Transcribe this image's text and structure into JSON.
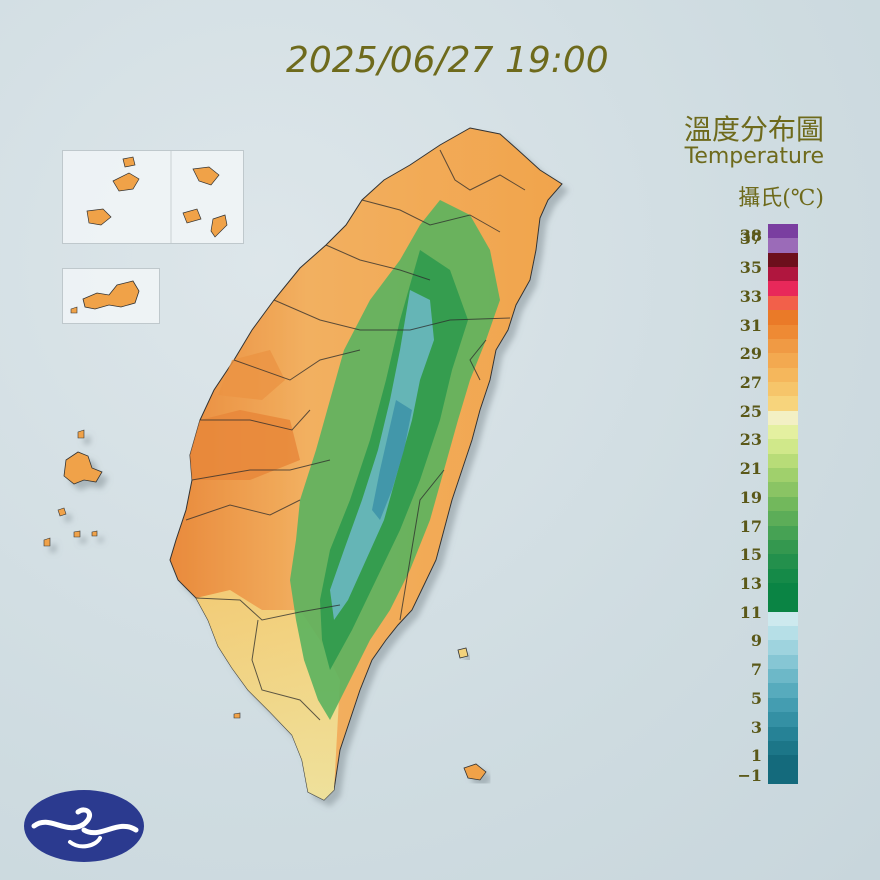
{
  "timestamp": "2025/06/27 19:00",
  "legend": {
    "title_zh": "溫度分布圖",
    "title_en": "Temperature",
    "unit": "攝氏(℃)",
    "ticks": [
      "38",
      "37",
      "35",
      "33",
      "31",
      "29",
      "27",
      "25",
      "23",
      "21",
      "19",
      "17",
      "15",
      "13",
      "11",
      "9",
      "7",
      "5",
      "3",
      "1",
      "−1"
    ],
    "segments": [
      {
        "from": 37,
        "to": 38,
        "color": "#7a3ea0"
      },
      {
        "from": 36,
        "to": 37,
        "color": "#9b6bb8"
      },
      {
        "from": 35,
        "to": 36,
        "color": "#6d0f1c"
      },
      {
        "from": 34,
        "to": 35,
        "color": "#b0163e"
      },
      {
        "from": 33,
        "to": 34,
        "color": "#e8285a"
      },
      {
        "from": 32,
        "to": 33,
        "color": "#f2604a"
      },
      {
        "from": 31,
        "to": 32,
        "color": "#ea7a28"
      },
      {
        "from": 30,
        "to": 31,
        "color": "#ee8a34"
      },
      {
        "from": 29,
        "to": 30,
        "color": "#f09a44"
      },
      {
        "from": 28,
        "to": 29,
        "color": "#f3a950"
      },
      {
        "from": 27,
        "to": 28,
        "color": "#f5b75c"
      },
      {
        "from": 26,
        "to": 27,
        "color": "#f6c56a"
      },
      {
        "from": 25,
        "to": 26,
        "color": "#f7d47c"
      },
      {
        "from": 24,
        "to": 25,
        "color": "#f3f0c4"
      },
      {
        "from": 23,
        "to": 24,
        "color": "#e4f0a0"
      },
      {
        "from": 22,
        "to": 23,
        "color": "#d0e88a"
      },
      {
        "from": 21,
        "to": 22,
        "color": "#b8dc78"
      },
      {
        "from": 20,
        "to": 21,
        "color": "#a0d06c"
      },
      {
        "from": 19,
        "to": 20,
        "color": "#8ac464"
      },
      {
        "from": 18,
        "to": 19,
        "color": "#72b85c"
      },
      {
        "from": 17,
        "to": 18,
        "color": "#5cad58"
      },
      {
        "from": 16,
        "to": 17,
        "color": "#46a254"
      },
      {
        "from": 15,
        "to": 16,
        "color": "#34984f"
      },
      {
        "from": 14,
        "to": 15,
        "color": "#23904c"
      },
      {
        "from": 13,
        "to": 14,
        "color": "#158a48"
      },
      {
        "from": 11,
        "to": 13,
        "color": "#0a8444"
      },
      {
        "from": 10,
        "to": 11,
        "color": "#cde9ee"
      },
      {
        "from": 9,
        "to": 10,
        "color": "#b6dfe7"
      },
      {
        "from": 8,
        "to": 9,
        "color": "#9ed3de"
      },
      {
        "from": 7,
        "to": 8,
        "color": "#86c6d4"
      },
      {
        "from": 6,
        "to": 7,
        "color": "#6db8c8"
      },
      {
        "from": 5,
        "to": 6,
        "color": "#57abbd"
      },
      {
        "from": 4,
        "to": 5,
        "color": "#449db1"
      },
      {
        "from": 3,
        "to": 4,
        "color": "#3490a4"
      },
      {
        "from": 2,
        "to": 3,
        "color": "#268296"
      },
      {
        "from": 1,
        "to": 2,
        "color": "#1c7688"
      },
      {
        "from": -1,
        "to": 1,
        "color": "#146a7c"
      }
    ]
  },
  "colors": {
    "background": "#d3dfe3",
    "title": "#6e6a1c",
    "land_warm": "#f0a248",
    "land_hot": "#e8873a",
    "land_mild": "#f2e6a4",
    "mountain_green": "#3aa356",
    "mountain_cool": "#6fbac8",
    "logo_blue": "#2b3a8f"
  },
  "icons": {
    "logo": "cwa-logo-icon"
  }
}
